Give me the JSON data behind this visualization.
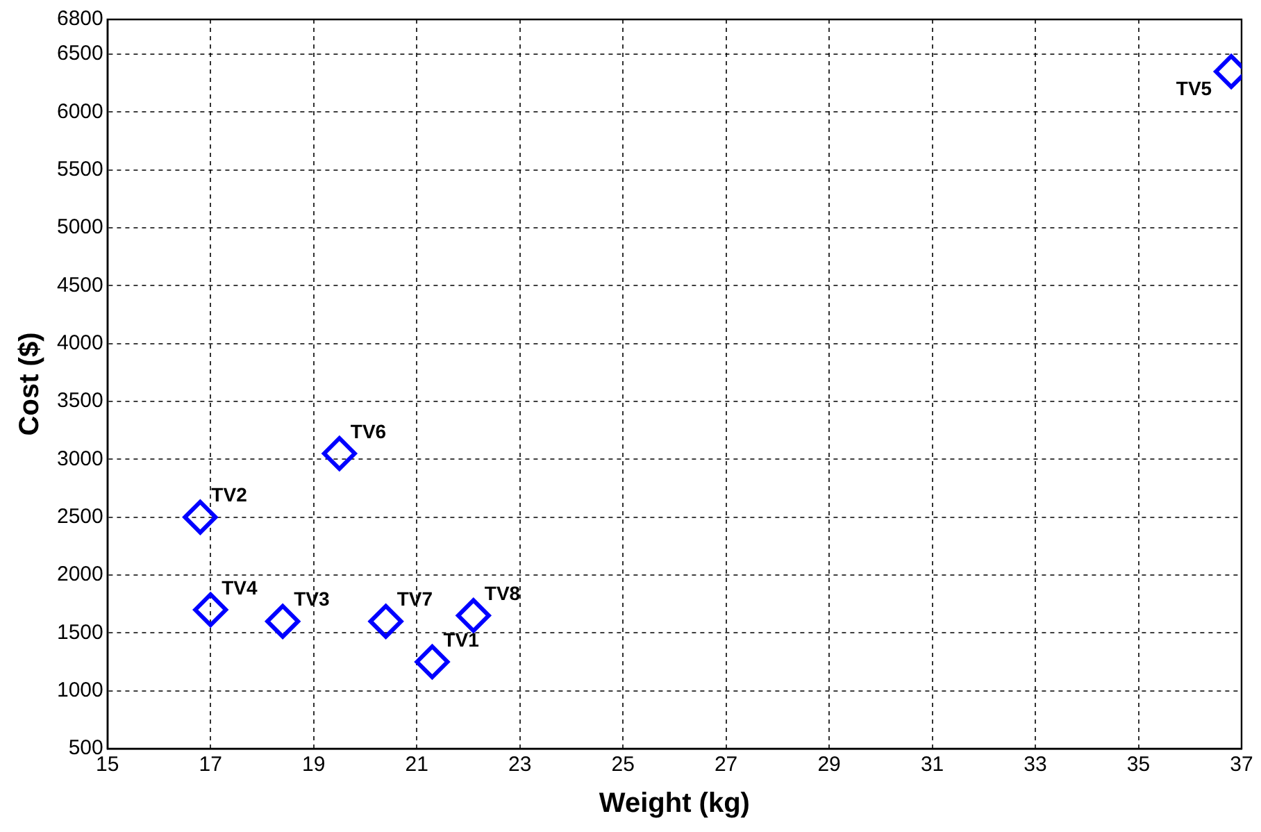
{
  "chart_data": {
    "type": "scatter",
    "xlabel": "Weight (kg)",
    "ylabel": "Cost ($)",
    "x": [
      21.3,
      16.8,
      18.4,
      17.0,
      36.8,
      19.5,
      20.4,
      22.1
    ],
    "series": [
      {
        "color": "#0000ff",
        "values": [
          1250,
          2500,
          1600,
          1700,
          6350,
          3050,
          1600,
          1650
        ]
      }
    ],
    "marker": "diamond",
    "grid": true,
    "legend": false,
    "xlim": [
      15,
      37
    ],
    "xticks": [
      15,
      17,
      19,
      21,
      23,
      25,
      27,
      29,
      31,
      33,
      35,
      37
    ],
    "ylim": [
      500,
      6800
    ],
    "yticks": [
      500,
      1000,
      1500,
      2000,
      2500,
      3000,
      3500,
      4000,
      4500,
      5000,
      5500,
      6000,
      6500,
      6800
    ],
    "annotations": [
      {
        "text": "TV1",
        "x": 21.3,
        "y": 1250
      },
      {
        "text": "TV2",
        "x": 16.8,
        "y": 2500
      },
      {
        "text": "TV3",
        "x": 18.4,
        "y": 1600
      },
      {
        "text": "TV4",
        "x": 17.0,
        "y": 1700
      },
      {
        "text": "TV5",
        "x": 36.8,
        "y": 6350
      },
      {
        "text": "TV6",
        "x": 19.5,
        "y": 3050
      },
      {
        "text": "TV7",
        "x": 20.4,
        "y": 1600
      },
      {
        "text": "TV8",
        "x": 22.1,
        "y": 1650
      }
    ]
  }
}
